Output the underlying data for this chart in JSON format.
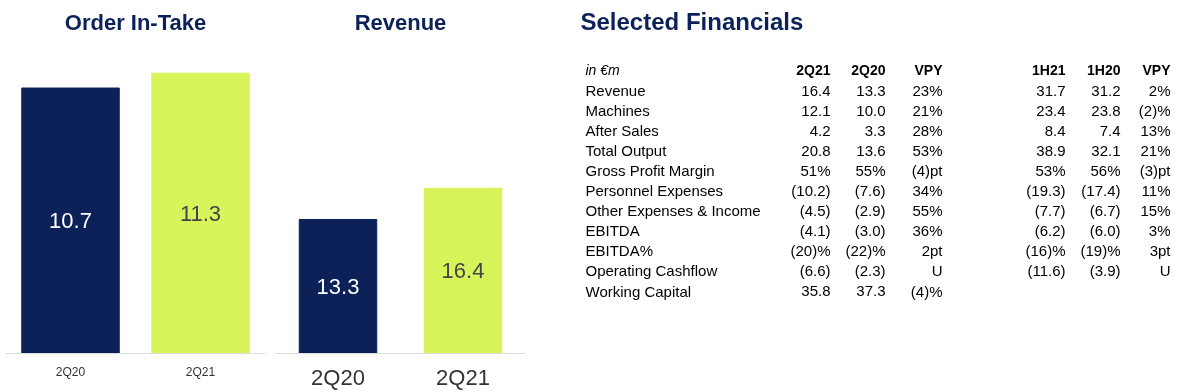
{
  "chart_data": [
    {
      "type": "bar",
      "title": "Order In-Take",
      "categories": [
        "2Q20",
        "2Q21"
      ],
      "values": [
        10.7,
        11.3
      ],
      "colors": [
        "#0b2157",
        "#d7f55a"
      ],
      "data_labels": true
    },
    {
      "type": "bar",
      "title": "Revenue",
      "categories": [
        "2Q20",
        "2Q21"
      ],
      "values": [
        13.3,
        16.4
      ],
      "colors": [
        "#0b2157",
        "#d7f55a"
      ],
      "data_labels": true
    },
    {
      "type": "other",
      "title": "Selected Financials",
      "categories": [
        "in €m",
        "2Q21",
        "2Q20",
        "VPY",
        "1H21",
        "1H20",
        "VPY"
      ],
      "y_categories": [
        "Revenue",
        "Machines",
        "After Sales",
        "Total Output",
        "Gross Profit Margin",
        "Personnel Expenses",
        "Other Expenses & Income",
        "EBITDA",
        "EBITDA%",
        "Operating Cashflow",
        "Working Capital"
      ],
      "cell_labels": [
        [
          "16.4",
          "13.3",
          "23%",
          "31.7",
          "31.2",
          "2%"
        ],
        [
          "12.1",
          "10.0",
          "21%",
          "23.4",
          "23.8",
          "(2)%"
        ],
        [
          "4.2",
          "3.3",
          "28%",
          "8.4",
          "7.4",
          "13%"
        ],
        [
          "20.8",
          "13.6",
          "53%",
          "38.9",
          "32.1",
          "21%"
        ],
        [
          "51%",
          "55%",
          "(4)pt",
          "53%",
          "56%",
          "(3)pt"
        ],
        [
          "(10.2)",
          "(7.6)",
          "34%",
          "(19.3)",
          "(17.4)",
          "11%"
        ],
        [
          "(4.5)",
          "(2.9)",
          "55%",
          "(7.7)",
          "(6.7)",
          "15%"
        ],
        [
          "(4.1)",
          "(3.0)",
          "36%",
          "(6.2)",
          "(6.0)",
          "3%"
        ],
        [
          "(20)%",
          "(22)%",
          "2pt",
          "(16)%",
          "(19)%",
          "3pt"
        ],
        [
          "(6.6)",
          "(2.3)",
          "U",
          "(11.6)",
          "(3.9)",
          "U"
        ],
        [
          "35.8",
          "37.3",
          "(4)%",
          null,
          null,
          null
        ]
      ]
    }
  ]
}
